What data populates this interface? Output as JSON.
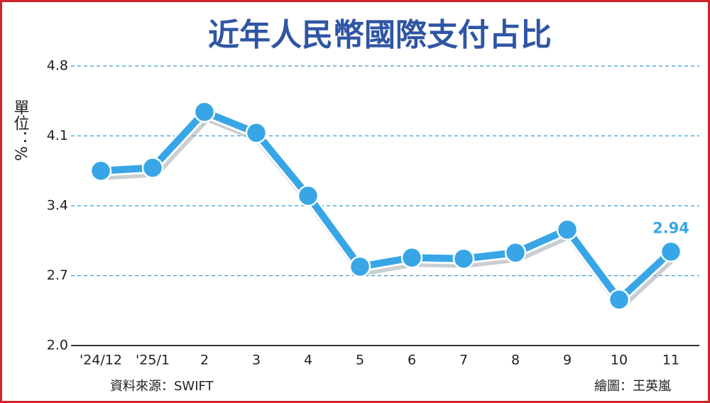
{
  "chart_data": {
    "type": "line",
    "title": "近年人民幣國際支付占比",
    "unit_label": "單位：%",
    "source": "資料來源：SWIFT",
    "credit": "繪圖：王英嵐",
    "categories": [
      "'24/12",
      "'25/1",
      "2",
      "3",
      "4",
      "5",
      "6",
      "7",
      "8",
      "9",
      "10",
      "11"
    ],
    "series": [
      {
        "color": "#38a6e6",
        "values": [
          3.75,
          3.78,
          4.34,
          4.13,
          3.5,
          2.79,
          2.88,
          2.87,
          2.93,
          3.16,
          2.46,
          2.94
        ]
      }
    ],
    "ylim": [
      2,
      4.8
    ],
    "yticks": [
      {
        "value": 2,
        "label": "2.0"
      },
      2.7,
      3.4,
      4.1,
      4.8
    ],
    "grid": true
  }
}
